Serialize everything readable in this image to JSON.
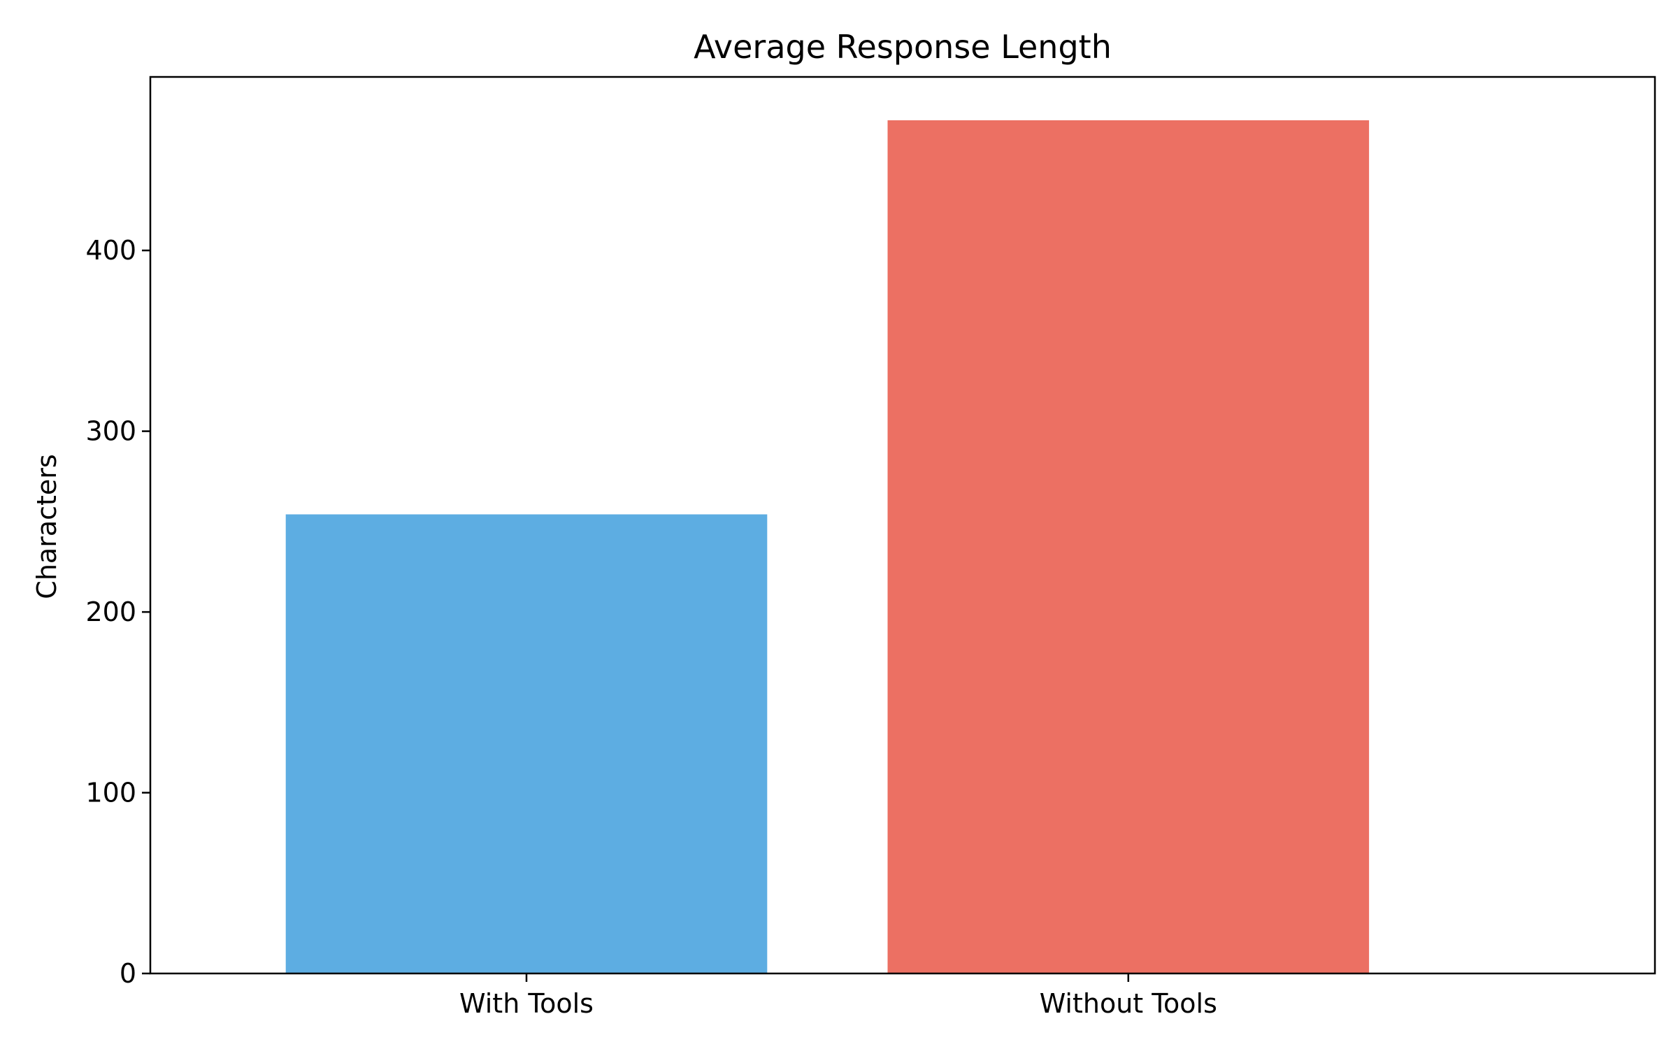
{
  "chart_data": {
    "type": "bar",
    "title": "Average Response Length",
    "xlabel": "",
    "ylabel": "Characters",
    "categories": [
      "With Tools",
      "Without Tools"
    ],
    "values": [
      254,
      472
    ],
    "colors": [
      "#5DADE2",
      "#EC7063"
    ],
    "ylim": [
      0,
      496
    ],
    "yticks": [
      0,
      100,
      200,
      300,
      400
    ],
    "ytick_labels": [
      "0",
      "100",
      "200",
      "300",
      "400"
    ],
    "grid": false,
    "legend": "none"
  }
}
